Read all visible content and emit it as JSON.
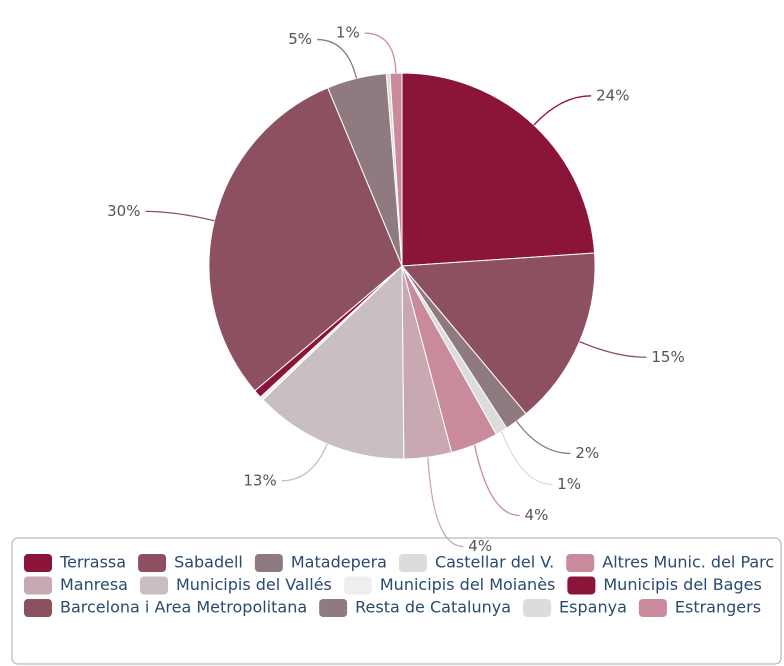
{
  "chart_data": {
    "type": "pie",
    "categories": [
      "Terrassa",
      "Sabadell",
      "Matadepera",
      "Castellar del V.",
      "Altres Munic. del Parc",
      "Manresa",
      "Municipis del Vallés",
      "Municipis del Moianès",
      "Municipis del Bages",
      "Barcelona i Area Metropolitana",
      "Resta de Catalunya",
      "Espanya",
      "Estrangers"
    ],
    "values": [
      24,
      15,
      2,
      1,
      4,
      4,
      13,
      0.3,
      0.7,
      30,
      5,
      0.3,
      1
    ],
    "value_labels": [
      "24%",
      "15%",
      "2%",
      "1%",
      "4%",
      "4%",
      "13%",
      null,
      null,
      "30%",
      "5%",
      null,
      "1%"
    ],
    "colors": [
      "#8b1538",
      "#8c5060",
      "#8f7a80",
      "#dcdcdc",
      "#c98a9c",
      "#c9a9b1",
      "#c9bec2",
      "#eeeeee",
      "#8b1538",
      "#8c5060",
      "#8f7a80",
      "#dcdcdc",
      "#c98a9c"
    ]
  }
}
